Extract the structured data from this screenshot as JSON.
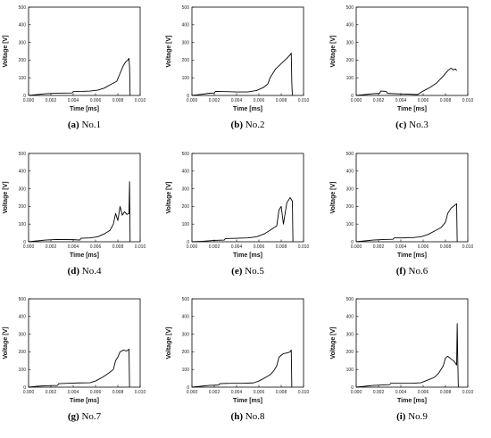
{
  "chart_data": [
    {
      "type": "line",
      "caption_letter": "(a)",
      "caption_text": "No.1",
      "xlabel": "Time [ms]",
      "ylabel": "Voltage [V]",
      "xlim": [
        0,
        0.01
      ],
      "ylim": [
        0,
        500
      ],
      "x_ticks": [
        "0.000",
        "0.002",
        "0.004",
        "0.006",
        "0.008",
        "0.010"
      ],
      "y_ticks": [
        "0",
        "100",
        "200",
        "300",
        "400",
        "500"
      ],
      "series": [
        {
          "x": [
            0,
            0.0008,
            0.0015,
            0.0025,
            0.0039,
            0.004,
            0.0048,
            0.0055,
            0.0062,
            0.0068,
            0.0073,
            0.0076,
            0.0079,
            0.0082,
            0.0085,
            0.0087,
            0.0089,
            0.009,
            0.00905,
            0.0091
          ],
          "values": [
            0,
            5,
            10,
            13,
            14,
            22,
            23,
            25,
            30,
            42,
            60,
            70,
            80,
            125,
            170,
            190,
            200,
            210,
            160,
            0
          ]
        }
      ]
    },
    {
      "type": "line",
      "caption_letter": "(b)",
      "caption_text": "No.2",
      "xlabel": "Time [ms]",
      "ylabel": "Voltage [V]",
      "xlim": [
        0,
        0.01
      ],
      "ylim": [
        0,
        500
      ],
      "x_ticks": [
        "0.000",
        "0.002",
        "0.004",
        "0.006",
        "0.008",
        "0.010"
      ],
      "y_ticks": [
        "0",
        "100",
        "200",
        "300",
        "400",
        "500"
      ],
      "series": [
        {
          "x": [
            0,
            0.0008,
            0.0015,
            0.002,
            0.0021,
            0.003,
            0.004,
            0.005,
            0.0058,
            0.0064,
            0.0068,
            0.007,
            0.0075,
            0.008,
            0.0085,
            0.0088,
            0.0089,
            0.00895,
            0.009
          ],
          "values": [
            0,
            6,
            12,
            14,
            23,
            22,
            20,
            20,
            28,
            45,
            65,
            100,
            150,
            180,
            210,
            230,
            240,
            70,
            0
          ]
        }
      ]
    },
    {
      "type": "line",
      "caption_letter": "(c)",
      "caption_text": "No.3",
      "xlabel": "Time [ms]",
      "ylabel": "Voltage [V]",
      "xlim": [
        0,
        0.01
      ],
      "ylim": [
        0,
        500
      ],
      "x_ticks": [
        "0.000",
        "0.002",
        "0.004",
        "0.006",
        "0.008",
        "0.010"
      ],
      "y_ticks": [
        "0",
        "100",
        "200",
        "300",
        "400",
        "500"
      ],
      "series": [
        {
          "x": [
            0,
            0.0008,
            0.0015,
            0.0021,
            0.0022,
            0.0027,
            0.0028,
            0.0035,
            0.0045,
            0.0055,
            0.006,
            0.0066,
            0.0072,
            0.0078,
            0.0082,
            0.0085,
            0.0087,
            0.0089,
            0.009
          ],
          "values": [
            0,
            5,
            10,
            12,
            25,
            23,
            12,
            10,
            8,
            5,
            25,
            45,
            70,
            110,
            140,
            155,
            145,
            150,
            140
          ]
        }
      ]
    },
    {
      "type": "line",
      "caption_letter": "(d)",
      "caption_text": "No.4",
      "xlabel": "Time [ms]",
      "ylabel": "Voltage [V]",
      "xlim": [
        0,
        0.01
      ],
      "ylim": [
        0,
        500
      ],
      "x_ticks": [
        "0.000",
        "0.002",
        "0.004",
        "0.006",
        "0.008",
        "0.010"
      ],
      "y_ticks": [
        "0",
        "100",
        "200",
        "300",
        "400",
        "500"
      ],
      "series": [
        {
          "x": [
            0,
            0.0008,
            0.0015,
            0.0025,
            0.004,
            0.0046,
            0.0047,
            0.0055,
            0.0062,
            0.0068,
            0.0073,
            0.0076,
            0.0078,
            0.008,
            0.0082,
            0.0084,
            0.0086,
            0.0088,
            0.009,
            0.00905,
            0.0091
          ],
          "values": [
            0,
            5,
            10,
            13,
            12,
            10,
            20,
            22,
            28,
            45,
            65,
            100,
            160,
            120,
            200,
            150,
            170,
            155,
            160,
            340,
            0
          ]
        }
      ]
    },
    {
      "type": "line",
      "caption_letter": "(e)",
      "caption_text": "No.5",
      "xlabel": "Time [ms]",
      "ylabel": "Voltage [V]",
      "xlim": [
        0,
        0.01
      ],
      "ylim": [
        0,
        500
      ],
      "x_ticks": [
        "0.000",
        "0.002",
        "0.004",
        "0.006",
        "0.008",
        "0.010"
      ],
      "y_ticks": [
        "0",
        "100",
        "200",
        "300",
        "400",
        "500"
      ],
      "series": [
        {
          "x": [
            0,
            0.001,
            0.002,
            0.0029,
            0.003,
            0.004,
            0.005,
            0.0058,
            0.0065,
            0.007,
            0.0076,
            0.0078,
            0.008,
            0.0082,
            0.0085,
            0.0088,
            0.009,
            0.00905
          ],
          "values": [
            0,
            3,
            8,
            10,
            18,
            20,
            22,
            28,
            45,
            65,
            90,
            180,
            200,
            100,
            220,
            250,
            230,
            0
          ]
        }
      ]
    },
    {
      "type": "line",
      "caption_letter": "(f)",
      "caption_text": "No.6",
      "xlabel": "Time [ms]",
      "ylabel": "Voltage [V]",
      "xlim": [
        0,
        0.01
      ],
      "ylim": [
        0,
        500
      ],
      "x_ticks": [
        "0.000",
        "0.002",
        "0.004",
        "0.006",
        "0.008",
        "0.010"
      ],
      "y_ticks": [
        "0",
        "100",
        "200",
        "300",
        "400",
        "500"
      ],
      "series": [
        {
          "x": [
            0,
            0.0008,
            0.0015,
            0.0025,
            0.0033,
            0.0034,
            0.0042,
            0.005,
            0.0058,
            0.0064,
            0.007,
            0.0076,
            0.008,
            0.0082,
            0.0085,
            0.0088,
            0.009,
            0.00905
          ],
          "values": [
            0,
            5,
            10,
            13,
            14,
            22,
            22,
            23,
            28,
            40,
            60,
            80,
            110,
            160,
            190,
            205,
            215,
            0
          ]
        }
      ]
    },
    {
      "type": "line",
      "caption_letter": "(g)",
      "caption_text": "No.7",
      "xlabel": "Time [ms]",
      "ylabel": "Voltage [V]",
      "xlim": [
        0,
        0.01
      ],
      "ylim": [
        0,
        500
      ],
      "x_ticks": [
        "0.000",
        "0.002",
        "0.004",
        "0.006",
        "0.008",
        "0.010"
      ],
      "y_ticks": [
        "0",
        "100",
        "200",
        "300",
        "400",
        "500"
      ],
      "series": [
        {
          "x": [
            0,
            0.0008,
            0.0015,
            0.0026,
            0.0027,
            0.0035,
            0.0045,
            0.0055,
            0.006,
            0.0066,
            0.0072,
            0.0076,
            0.0078,
            0.008,
            0.0082,
            0.0085,
            0.0088,
            0.009,
            0.00905
          ],
          "values": [
            0,
            5,
            8,
            10,
            20,
            22,
            24,
            25,
            35,
            55,
            80,
            100,
            150,
            170,
            200,
            210,
            205,
            215,
            0
          ]
        }
      ]
    },
    {
      "type": "line",
      "caption_letter": "(h)",
      "caption_text": "No.8",
      "xlabel": "Time [ms]",
      "ylabel": "Voltage [V]",
      "xlim": [
        0,
        0.01
      ],
      "ylim": [
        0,
        500
      ],
      "x_ticks": [
        "0.000",
        "0.002",
        "0.004",
        "0.006",
        "0.008",
        "0.010"
      ],
      "y_ticks": [
        "0",
        "100",
        "200",
        "300",
        "400",
        "500"
      ],
      "series": [
        {
          "x": [
            0,
            0.0008,
            0.0015,
            0.0024,
            0.0025,
            0.0035,
            0.0045,
            0.0055,
            0.006,
            0.0066,
            0.007,
            0.0073,
            0.0076,
            0.0078,
            0.0082,
            0.0086,
            0.0088,
            0.0089,
            0.00895
          ],
          "values": [
            0,
            5,
            10,
            12,
            20,
            22,
            22,
            24,
            35,
            55,
            70,
            90,
            120,
            170,
            190,
            195,
            200,
            210,
            0
          ]
        }
      ]
    },
    {
      "type": "line",
      "caption_letter": "(i)",
      "caption_text": "No.9",
      "xlabel": "Time [ms]",
      "ylabel": "Voltage [V]",
      "xlim": [
        0,
        0.01
      ],
      "ylim": [
        0,
        500
      ],
      "x_ticks": [
        "0.000",
        "0.002",
        "0.004",
        "0.006",
        "0.008",
        "0.010"
      ],
      "y_ticks": [
        "0",
        "100",
        "200",
        "300",
        "400",
        "500"
      ],
      "series": [
        {
          "x": [
            0,
            0.0008,
            0.0015,
            0.003,
            0.0031,
            0.004,
            0.005,
            0.0058,
            0.0064,
            0.007,
            0.0074,
            0.0078,
            0.008,
            0.0082,
            0.0085,
            0.0088,
            0.009,
            0.00905,
            0.0091,
            0.00915
          ],
          "values": [
            0,
            5,
            10,
            14,
            22,
            22,
            22,
            25,
            40,
            55,
            80,
            120,
            165,
            175,
            160,
            145,
            125,
            360,
            160,
            0
          ]
        }
      ]
    }
  ]
}
